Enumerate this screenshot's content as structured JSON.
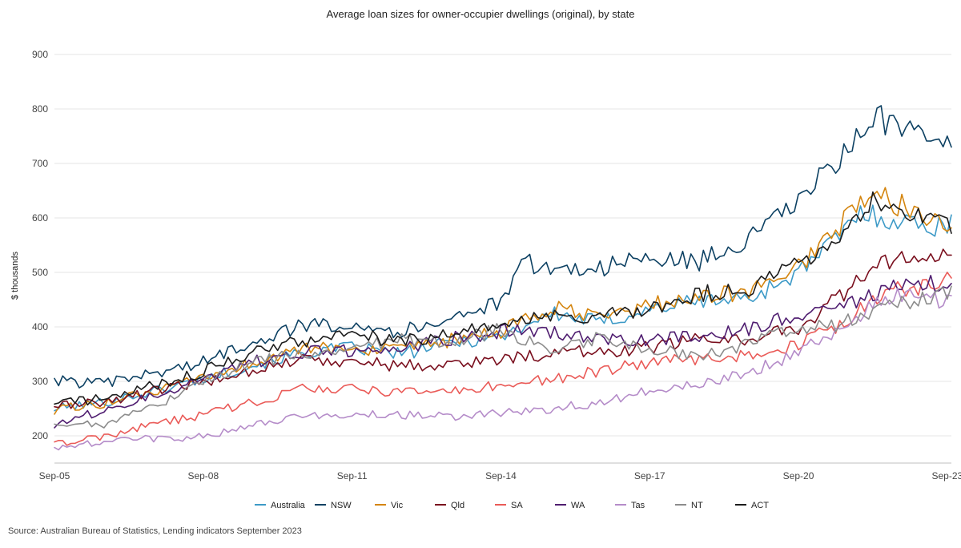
{
  "chart_data": {
    "type": "line",
    "title": "Average loan sizes for owner-occupier dwellings (original), by state",
    "ylabel": "$ thousands",
    "xlabel": "",
    "ylim": [
      150,
      900
    ],
    "y_ticks": [
      200,
      300,
      400,
      500,
      600,
      700,
      800,
      900
    ],
    "x_ticks": [
      "Sep-05",
      "Sep-08",
      "Sep-11",
      "Sep-14",
      "Sep-17",
      "Sep-20",
      "Sep-23"
    ],
    "x_start": "Sep-05",
    "x_end": "Oct-23",
    "x_frequency": "monthly",
    "grid": true,
    "legend_position": "bottom",
    "source": "Source: Australian Bureau of Statistics, Lending indicators September 2023",
    "series": [
      {
        "name": "Australia",
        "color": "#3d9ac7",
        "anchors": [
          [
            "Sep-05",
            250
          ],
          [
            "Sep-06",
            262
          ],
          [
            "Sep-07",
            282
          ],
          [
            "Sep-08",
            305
          ],
          [
            "Sep-09",
            330
          ],
          [
            "Sep-10",
            352
          ],
          [
            "Sep-11",
            362
          ],
          [
            "Sep-12",
            350
          ],
          [
            "Sep-13",
            372
          ],
          [
            "Sep-14",
            382
          ],
          [
            "Sep-15",
            425
          ],
          [
            "Sep-16",
            408
          ],
          [
            "Sep-17",
            432
          ],
          [
            "Sep-18",
            448
          ],
          [
            "Sep-19",
            452
          ],
          [
            "Sep-20",
            500
          ],
          [
            "Jun-21",
            560
          ],
          [
            "Dec-21",
            610
          ],
          [
            "Sep-22",
            595
          ],
          [
            "Jun-23",
            585
          ],
          [
            "Oct-23",
            590
          ]
        ]
      },
      {
        "name": "NSW",
        "color": "#0d4163",
        "anchors": [
          [
            "Sep-05",
            302
          ],
          [
            "Sep-06",
            295
          ],
          [
            "Sep-07",
            315
          ],
          [
            "Sep-08",
            335
          ],
          [
            "Sep-09",
            375
          ],
          [
            "Sep-10",
            402
          ],
          [
            "Sep-11",
            408
          ],
          [
            "Sep-12",
            390
          ],
          [
            "Sep-13",
            420
          ],
          [
            "Sep-14",
            442
          ],
          [
            "Mar-15",
            520
          ],
          [
            "Sep-15",
            505
          ],
          [
            "Sep-16",
            510
          ],
          [
            "Sep-17",
            525
          ],
          [
            "Sep-18",
            520
          ],
          [
            "Sep-19",
            560
          ],
          [
            "Sep-20",
            630
          ],
          [
            "Jun-21",
            700
          ],
          [
            "Mar-22",
            785
          ],
          [
            "Sep-22",
            770
          ],
          [
            "Jun-23",
            725
          ],
          [
            "Oct-23",
            755
          ]
        ]
      },
      {
        "name": "Vic",
        "color": "#d4850f",
        "anchors": [
          [
            "Sep-05",
            248
          ],
          [
            "Sep-06",
            260
          ],
          [
            "Sep-07",
            280
          ],
          [
            "Sep-08",
            305
          ],
          [
            "Sep-09",
            335
          ],
          [
            "Sep-10",
            358
          ],
          [
            "Sep-11",
            362
          ],
          [
            "Sep-12",
            355
          ],
          [
            "Sep-13",
            375
          ],
          [
            "Sep-14",
            390
          ],
          [
            "Sep-15",
            435
          ],
          [
            "Sep-16",
            415
          ],
          [
            "Sep-17",
            440
          ],
          [
            "Sep-18",
            455
          ],
          [
            "Sep-19",
            465
          ],
          [
            "Sep-20",
            510
          ],
          [
            "Jun-21",
            580
          ],
          [
            "Mar-22",
            645
          ],
          [
            "Sep-22",
            625
          ],
          [
            "Jun-23",
            600
          ],
          [
            "Oct-23",
            595
          ]
        ]
      },
      {
        "name": "Qld",
        "color": "#7a0f1e",
        "anchors": [
          [
            "Sep-05",
            255
          ],
          [
            "Sep-06",
            262
          ],
          [
            "Sep-07",
            282
          ],
          [
            "Sep-08",
            298
          ],
          [
            "Sep-09",
            322
          ],
          [
            "Sep-10",
            340
          ],
          [
            "Sep-11",
            338
          ],
          [
            "Sep-12",
            328
          ],
          [
            "Sep-13",
            332
          ],
          [
            "Sep-14",
            340
          ],
          [
            "Sep-15",
            352
          ],
          [
            "Sep-16",
            355
          ],
          [
            "Sep-17",
            362
          ],
          [
            "Sep-18",
            378
          ],
          [
            "Sep-19",
            378
          ],
          [
            "Sep-20",
            400
          ],
          [
            "Jun-21",
            450
          ],
          [
            "Mar-22",
            505
          ],
          [
            "Sep-22",
            530
          ],
          [
            "Jun-23",
            520
          ],
          [
            "Oct-23",
            538
          ]
        ]
      },
      {
        "name": "SA",
        "color": "#ea5b58",
        "anchors": [
          [
            "Sep-05",
            185
          ],
          [
            "Sep-06",
            198
          ],
          [
            "Sep-07",
            222
          ],
          [
            "Sep-08",
            238
          ],
          [
            "Sep-09",
            262
          ],
          [
            "Sep-10",
            285
          ],
          [
            "Sep-11",
            288
          ],
          [
            "Sep-12",
            278
          ],
          [
            "Sep-13",
            282
          ],
          [
            "Sep-14",
            292
          ],
          [
            "Sep-15",
            305
          ],
          [
            "Sep-16",
            318
          ],
          [
            "Sep-17",
            335
          ],
          [
            "Sep-18",
            340
          ],
          [
            "Sep-19",
            348
          ],
          [
            "Sep-20",
            368
          ],
          [
            "Jun-21",
            400
          ],
          [
            "Mar-22",
            445
          ],
          [
            "Sep-22",
            470
          ],
          [
            "Jun-23",
            475
          ],
          [
            "Oct-23",
            490
          ]
        ]
      },
      {
        "name": "WA",
        "color": "#4f1d70",
        "anchors": [
          [
            "Sep-05",
            220
          ],
          [
            "Sep-06",
            248
          ],
          [
            "Sep-07",
            275
          ],
          [
            "Sep-08",
            305
          ],
          [
            "Sep-09",
            335
          ],
          [
            "Sep-10",
            352
          ],
          [
            "Sep-11",
            358
          ],
          [
            "Sep-12",
            358
          ],
          [
            "Sep-13",
            378
          ],
          [
            "Sep-14",
            392
          ],
          [
            "Sep-15",
            388
          ],
          [
            "Sep-16",
            380
          ],
          [
            "Sep-17",
            375
          ],
          [
            "Sep-18",
            385
          ],
          [
            "Sep-19",
            395
          ],
          [
            "Sep-20",
            425
          ],
          [
            "Jun-21",
            438
          ],
          [
            "Mar-22",
            460
          ],
          [
            "Sep-22",
            475
          ],
          [
            "Jun-23",
            478
          ],
          [
            "Oct-23",
            475
          ]
        ]
      },
      {
        "name": "Tas",
        "color": "#b58cc9",
        "anchors": [
          [
            "Sep-05",
            178
          ],
          [
            "Sep-06",
            188
          ],
          [
            "Sep-07",
            195
          ],
          [
            "Sep-08",
            198
          ],
          [
            "Sep-09",
            218
          ],
          [
            "Sep-10",
            238
          ],
          [
            "Sep-11",
            240
          ],
          [
            "Sep-12",
            238
          ],
          [
            "Sep-13",
            235
          ],
          [
            "Sep-14",
            242
          ],
          [
            "Sep-15",
            248
          ],
          [
            "Sep-16",
            262
          ],
          [
            "Sep-17",
            282
          ],
          [
            "Sep-18",
            292
          ],
          [
            "Sep-19",
            318
          ],
          [
            "Sep-20",
            352
          ],
          [
            "Jun-21",
            392
          ],
          [
            "Mar-22",
            438
          ],
          [
            "Sep-22",
            462
          ],
          [
            "Jun-23",
            450
          ],
          [
            "Oct-23",
            448
          ]
        ]
      },
      {
        "name": "NT",
        "color": "#8c8c8c",
        "anchors": [
          [
            "Sep-05",
            215
          ],
          [
            "Sep-06",
            222
          ],
          [
            "Sep-07",
            252
          ],
          [
            "Sep-08",
            300
          ],
          [
            "Sep-09",
            335
          ],
          [
            "Sep-10",
            350
          ],
          [
            "Sep-11",
            362
          ],
          [
            "Sep-12",
            375
          ],
          [
            "Sep-13",
            372
          ],
          [
            "Sep-14",
            395
          ],
          [
            "Sep-15",
            360
          ],
          [
            "Sep-16",
            380
          ],
          [
            "Sep-17",
            360
          ],
          [
            "Sep-18",
            345
          ],
          [
            "Sep-19",
            370
          ],
          [
            "Sep-20",
            395
          ],
          [
            "Jun-21",
            405
          ],
          [
            "Mar-22",
            430
          ],
          [
            "Sep-22",
            445
          ],
          [
            "Jun-23",
            455
          ],
          [
            "Oct-23",
            460
          ]
        ]
      },
      {
        "name": "ACT",
        "color": "#1c1c1c",
        "anchors": [
          [
            "Sep-05",
            262
          ],
          [
            "Sep-06",
            268
          ],
          [
            "Sep-07",
            292
          ],
          [
            "Sep-08",
            318
          ],
          [
            "Sep-09",
            355
          ],
          [
            "Sep-10",
            375
          ],
          [
            "Sep-11",
            385
          ],
          [
            "Sep-12",
            372
          ],
          [
            "Sep-13",
            392
          ],
          [
            "Sep-14",
            400
          ],
          [
            "Sep-15",
            422
          ],
          [
            "Sep-16",
            420
          ],
          [
            "Sep-17",
            430
          ],
          [
            "Sep-18",
            460
          ],
          [
            "Sep-19",
            470
          ],
          [
            "Sep-20",
            518
          ],
          [
            "Jun-21",
            560
          ],
          [
            "Mar-22",
            632
          ],
          [
            "Sep-22",
            612
          ],
          [
            "Jun-23",
            598
          ],
          [
            "Oct-23",
            588
          ]
        ]
      }
    ]
  }
}
